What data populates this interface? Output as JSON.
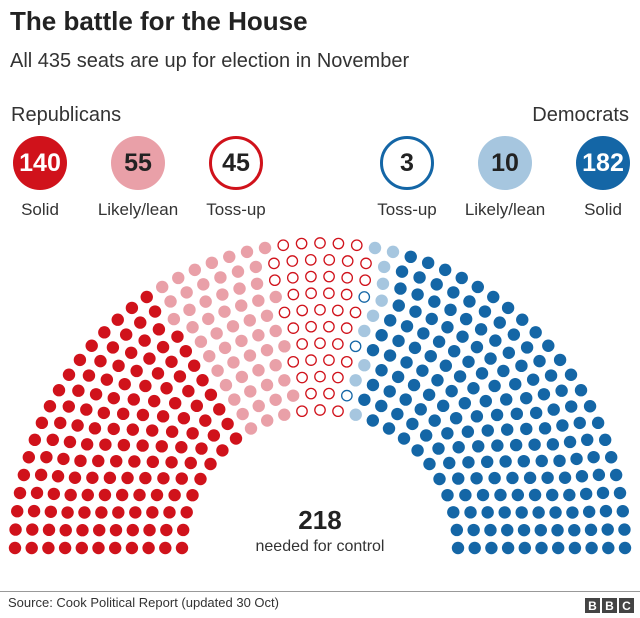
{
  "title": "The battle for the House",
  "subtitle": "All 435 seats are up for election in November",
  "republicans_label": "Republicans",
  "democrats_label": "Democrats",
  "majority": {
    "value": "218",
    "label": "needed for control"
  },
  "source": "Source: Cook Political Report (updated 30 Oct)",
  "logo": [
    "B",
    "B",
    "C"
  ],
  "categories": [
    {
      "party": "Republicans",
      "label": "Solid",
      "value": "140",
      "color": "#d0121b",
      "style": "filled",
      "text_color": "#ffffff"
    },
    {
      "party": "Republicans",
      "label": "Likely/lean",
      "value": "55",
      "color": "#e9a0a8",
      "style": "filled",
      "text_color": "#222222"
    },
    {
      "party": "Republicans",
      "label": "Toss-up",
      "value": "45",
      "color": "#d0121b",
      "style": "outline",
      "text_color": "#222222"
    },
    {
      "party": "Democrats",
      "label": "Toss-up",
      "value": "3",
      "color": "#1466a6",
      "style": "outline",
      "text_color": "#222222"
    },
    {
      "party": "Democrats",
      "label": "Likely/lean",
      "value": "10",
      "color": "#a6c6df",
      "style": "filled",
      "text_color": "#222222"
    },
    {
      "party": "Democrats",
      "label": "Solid",
      "value": "182",
      "color": "#1466a6",
      "style": "filled",
      "text_color": "#ffffff"
    }
  ],
  "chart_data": {
    "type": "pie",
    "variant": "parliament semicircle",
    "total": 435,
    "categories": [
      "Republicans Solid",
      "Republicans Likely/lean",
      "Republicans Toss-up",
      "Democrats Toss-up",
      "Democrats Likely/lean",
      "Democrats Solid"
    ],
    "values": [
      140,
      55,
      45,
      3,
      10,
      182
    ],
    "colors": [
      "#d0121b",
      "#e9a0a8",
      "#d0121b",
      "#1466a6",
      "#a6c6df",
      "#1466a6"
    ],
    "styles": [
      "filled",
      "filled",
      "outline",
      "outline",
      "filled",
      "filled"
    ],
    "annotation": "218 needed for control"
  }
}
